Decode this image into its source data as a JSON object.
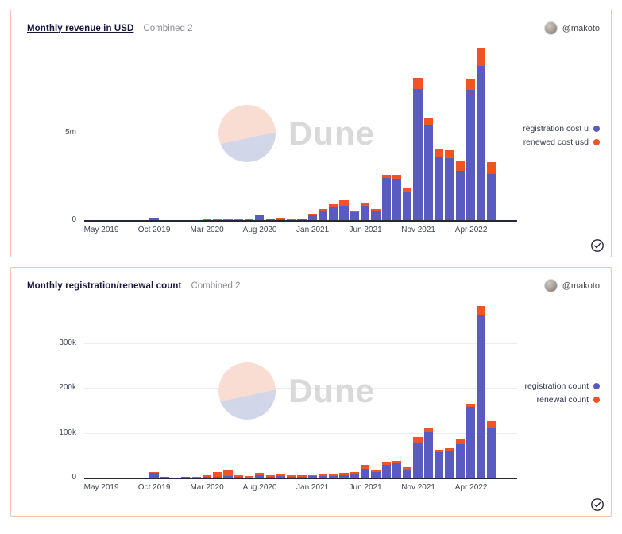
{
  "cards": [
    {
      "title": "Monthly revenue in USD",
      "subtitle": "Combined 2",
      "author": "@makoto",
      "watermark_text": "Dune"
    },
    {
      "title": "Monthly registration/renewal count",
      "subtitle": "Combined 2",
      "author": "@makoto",
      "watermark_text": "Dune"
    }
  ],
  "colors": {
    "registration_blue": "#5a5bc0",
    "renewal_orange": "#f25322",
    "card_border": "#f3c3b1",
    "axis_line": "#27273a",
    "gridline": "#ececec",
    "tick_text": "#3f4459",
    "watermark_peach": "#f9ddd2",
    "watermark_lavender": "#d2d6e9"
  },
  "chart_data": [
    {
      "type": "bar",
      "stacked": true,
      "title": "Monthly revenue in USD",
      "subtitle": "Combined 2",
      "xlabel": "",
      "ylabel": "",
      "grid": "horizontal",
      "legend_position": "right",
      "ylim": [
        0,
        10000000
      ],
      "yticks": [
        {
          "value": 0,
          "label": "0"
        },
        {
          "value": 5000000,
          "label": "5m"
        }
      ],
      "x_tick_labels": [
        "May 2019",
        "Oct 2019",
        "Mar 2020",
        "Aug 2020",
        "Jan 2021",
        "Jun 2021",
        "Nov 2021",
        "Apr 2022"
      ],
      "x_tick_step": 5,
      "categories": [
        "May 2019",
        "Jun 2019",
        "Jul 2019",
        "Aug 2019",
        "Sep 2019",
        "Oct 2019",
        "Nov 2019",
        "Dec 2019",
        "Jan 2020",
        "Feb 2020",
        "Mar 2020",
        "Apr 2020",
        "May 2020",
        "Jun 2020",
        "Jul 2020",
        "Aug 2020",
        "Sep 2020",
        "Oct 2020",
        "Nov 2020",
        "Dec 2020",
        "Jan 2021",
        "Feb 2021",
        "Mar 2021",
        "Apr 2021",
        "May 2021",
        "Jun 2021",
        "Jul 2021",
        "Aug 2021",
        "Sep 2021",
        "Oct 2021",
        "Nov 2021",
        "Dec 2021",
        "Jan 2022",
        "Feb 2022",
        "Mar 2022",
        "Apr 2022",
        "May 2022",
        "Jun 2022"
      ],
      "series": [
        {
          "name": "registration cost u",
          "color": "#5a5bc0",
          "values": [
            20000,
            10000,
            10000,
            10000,
            20000,
            170000,
            40000,
            20000,
            30000,
            20000,
            30000,
            30000,
            40000,
            30000,
            30000,
            300000,
            70000,
            120000,
            50000,
            80000,
            350000,
            600000,
            780000,
            850000,
            480000,
            860000,
            600000,
            2450000,
            2400000,
            1700000,
            7550000,
            5500000,
            3700000,
            3600000,
            2850000,
            7500000,
            8850000,
            2700000
          ]
        },
        {
          "name": "renewed cost usd",
          "color": "#f25322",
          "values": [
            0,
            0,
            0,
            0,
            10000,
            10000,
            10000,
            10000,
            20000,
            20000,
            40000,
            60000,
            80000,
            40000,
            50000,
            60000,
            50000,
            70000,
            40000,
            50000,
            60000,
            100000,
            160000,
            350000,
            100000,
            180000,
            100000,
            200000,
            220000,
            200000,
            650000,
            420000,
            400000,
            450000,
            550000,
            600000,
            1000000,
            650000
          ]
        }
      ]
    },
    {
      "type": "bar",
      "stacked": true,
      "title": "Monthly registration/renewal count",
      "subtitle": "Combined 2",
      "xlabel": "",
      "ylabel": "",
      "grid": "horizontal",
      "legend_position": "right",
      "ylim": [
        0,
        390000
      ],
      "yticks": [
        {
          "value": 0,
          "label": "0"
        },
        {
          "value": 100000,
          "label": "100k"
        },
        {
          "value": 200000,
          "label": "200k"
        },
        {
          "value": 300000,
          "label": "300k"
        }
      ],
      "x_tick_labels": [
        "May 2019",
        "Oct 2019",
        "Mar 2020",
        "Aug 2020",
        "Jan 2021",
        "Jun 2021",
        "Nov 2021",
        "Apr 2022"
      ],
      "x_tick_step": 5,
      "categories": [
        "May 2019",
        "Jun 2019",
        "Jul 2019",
        "Aug 2019",
        "Sep 2019",
        "Oct 2019",
        "Nov 2019",
        "Dec 2019",
        "Jan 2020",
        "Feb 2020",
        "Mar 2020",
        "Apr 2020",
        "May 2020",
        "Jun 2020",
        "Jul 2020",
        "Aug 2020",
        "Sep 2020",
        "Oct 2020",
        "Nov 2020",
        "Dec 2020",
        "Jan 2021",
        "Feb 2021",
        "Mar 2021",
        "Apr 2021",
        "May 2021",
        "Jun 2021",
        "Jul 2021",
        "Aug 2021",
        "Sep 2021",
        "Oct 2021",
        "Nov 2021",
        "Dec 2021",
        "Jan 2022",
        "Feb 2022",
        "Mar 2022",
        "Apr 2022",
        "May 2022",
        "Jun 2022"
      ],
      "series": [
        {
          "name": "registration count",
          "color": "#5a5bc0",
          "values": [
            2000,
            1500,
            1500,
            1500,
            2000,
            13000,
            3000,
            2000,
            3000,
            2000,
            3000,
            4000,
            5000,
            4000,
            2000,
            8000,
            4000,
            5000,
            4000,
            4000,
            5000,
            6000,
            6000,
            7000,
            10000,
            21000,
            14000,
            31000,
            33000,
            19000,
            78000,
            102000,
            58000,
            60000,
            76000,
            159000,
            366000,
            114000
          ]
        },
        {
          "name": "renewal count",
          "color": "#f25322",
          "values": [
            0,
            0,
            0,
            200,
            300,
            500,
            500,
            500,
            1000,
            1000,
            5000,
            10000,
            13000,
            4000,
            3000,
            5000,
            3000,
            4000,
            3000,
            3000,
            3000,
            4000,
            4000,
            5000,
            5000,
            9000,
            5000,
            5000,
            6000,
            5000,
            15000,
            10000,
            6000,
            8000,
            12000,
            7000,
            18000,
            14000
          ]
        }
      ]
    }
  ]
}
